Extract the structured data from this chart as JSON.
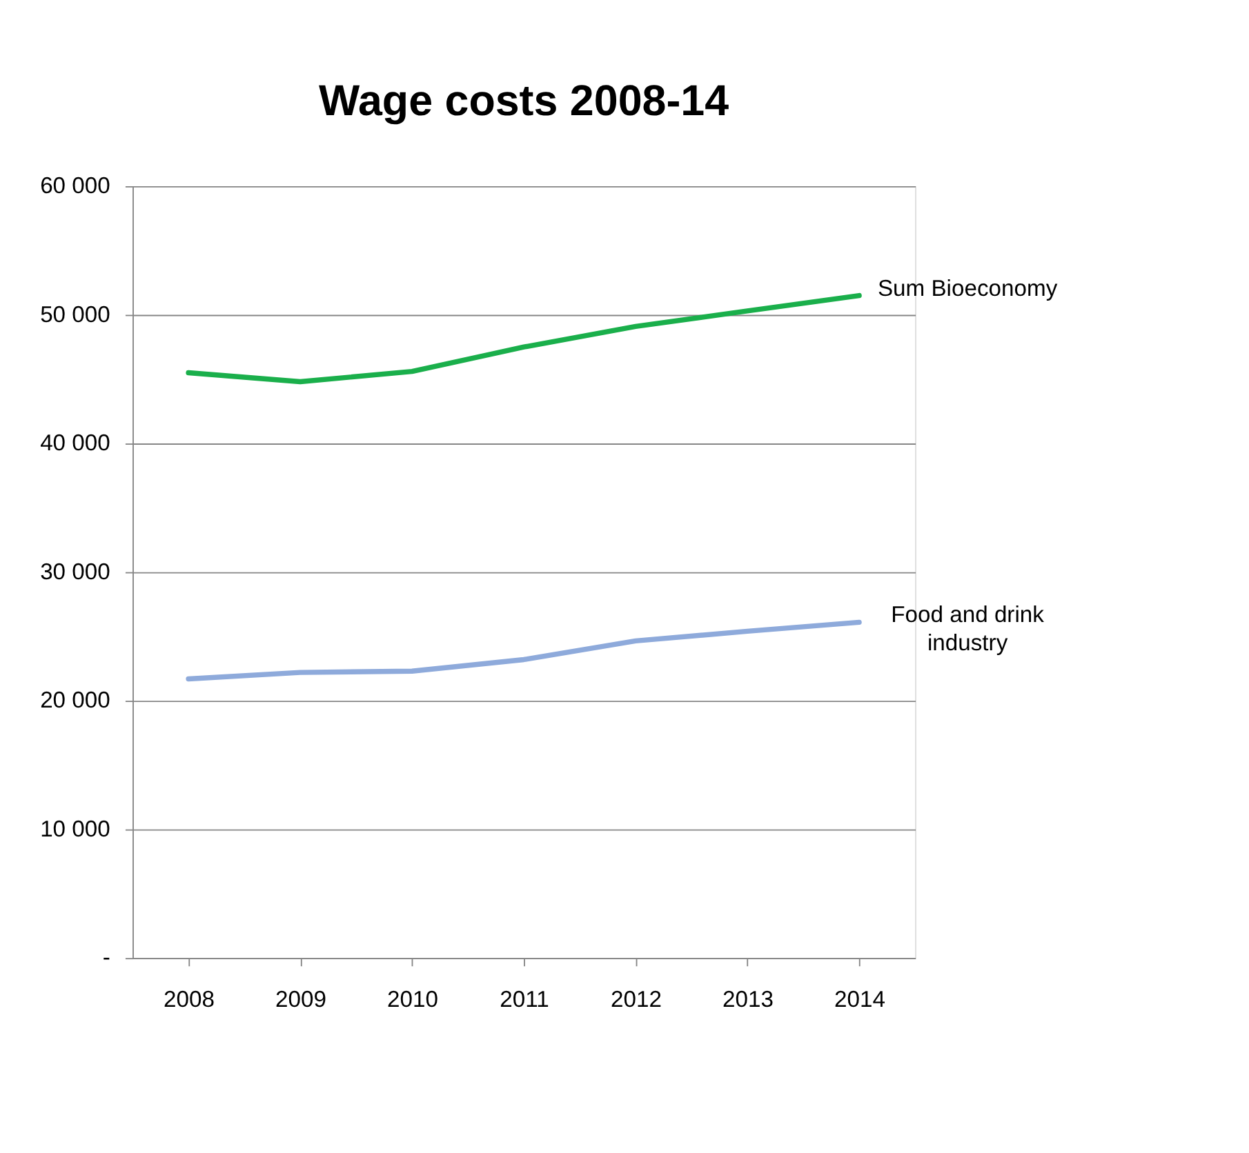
{
  "chart_data": {
    "type": "line",
    "title": "Wage costs 2008-14",
    "categories": [
      "2008",
      "2009",
      "2010",
      "2011",
      "2012",
      "2013",
      "2014"
    ],
    "series": [
      {
        "name": "Sum Bioeconomy",
        "color": "#1aaf4b",
        "values": [
          45500,
          44800,
          45600,
          47500,
          49100,
          50300,
          51500
        ]
      },
      {
        "name": "Food and drink industry",
        "color": "#8eaadb",
        "values": [
          21700,
          22200,
          22300,
          23200,
          24650,
          25400,
          26100
        ]
      }
    ],
    "ylim": [
      0,
      60000
    ],
    "yticks": [
      {
        "value": 0,
        "label": "-"
      },
      {
        "value": 10000,
        "label": "10 000"
      },
      {
        "value": 20000,
        "label": "20 000"
      },
      {
        "value": 30000,
        "label": "30 000"
      },
      {
        "value": 40000,
        "label": "40 000"
      },
      {
        "value": 50000,
        "label": "50 000"
      },
      {
        "value": 60000,
        "label": "60 000"
      }
    ],
    "grid": "y",
    "legend": false,
    "marker": "none",
    "line_style": "solid"
  }
}
